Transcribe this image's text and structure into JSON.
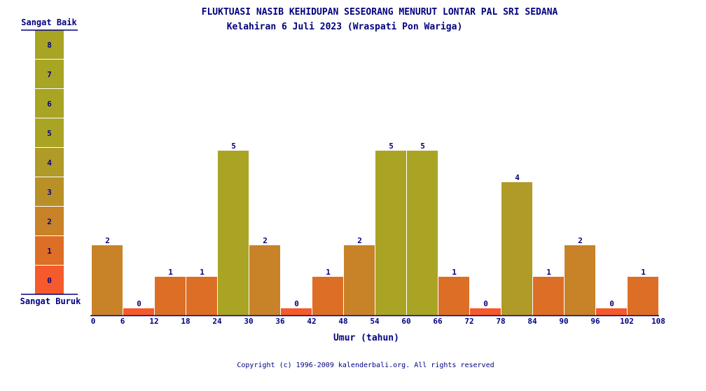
{
  "chart_data": {
    "type": "bar",
    "title": "FLUKTUASI NASIB KEHIDUPAN SESEORANG MENURUT LONTAR PAL SRI SEDANA",
    "subtitle": "Kelahiran 6 Juli 2023 (Wraspati Pon Wariga)",
    "xlabel": "Umur (tahun)",
    "x_ticks": [
      0,
      6,
      12,
      18,
      24,
      30,
      36,
      42,
      48,
      54,
      60,
      66,
      72,
      78,
      84,
      90,
      96,
      102,
      108
    ],
    "values": [
      2,
      0,
      1,
      1,
      5,
      2,
      0,
      1,
      2,
      5,
      5,
      1,
      0,
      4,
      1,
      2,
      0,
      1
    ],
    "ylim": [
      0,
      8
    ],
    "scale": {
      "top_label": "Sangat Baik",
      "bottom_label": "Sangat Buruk",
      "levels": [
        0,
        1,
        2,
        3,
        4,
        5,
        6,
        7,
        8
      ]
    },
    "level_colors": [
      "#f55a2c",
      "#dd6e25",
      "#c88228",
      "#b99028",
      "#b09a28",
      "#aaa424",
      "#a8a424",
      "#a8a424",
      "#a8a424"
    ],
    "grid": false
  },
  "footer": "Copyright (c) 1996-2009 kalenderbali.org. All rights reserved"
}
